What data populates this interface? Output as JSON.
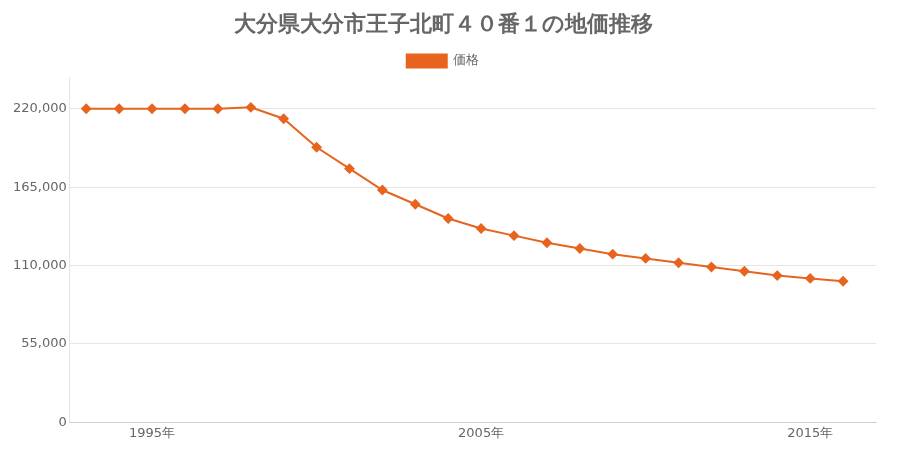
{
  "chart_data": {
    "type": "line",
    "title": "大分県大分市王子北町４０番１の地価推移",
    "x": [
      1993,
      1994,
      1995,
      1996,
      1997,
      1998,
      1999,
      2000,
      2001,
      2002,
      2003,
      2004,
      2005,
      2006,
      2007,
      2008,
      2009,
      2010,
      2011,
      2012,
      2013,
      2014,
      2015,
      2016
    ],
    "series": [
      {
        "name": "価格",
        "color": "#e8641e",
        "marker": "diamond",
        "line_style": "solid",
        "values": [
          220000,
          220000,
          220000,
          220000,
          220000,
          221000,
          213000,
          193000,
          178000,
          163000,
          153000,
          143000,
          136000,
          131000,
          126000,
          122000,
          118000,
          115000,
          112000,
          109000,
          106000,
          103000,
          101000,
          99000
        ]
      }
    ],
    "xlim": [
      1992.5,
      2017
    ],
    "xticks": [
      {
        "value": 1995,
        "label": "1995年"
      },
      {
        "value": 2005,
        "label": "2005年"
      },
      {
        "value": 2015,
        "label": "2015年"
      }
    ],
    "ylim": [
      0,
      242000
    ],
    "yticks": [
      0,
      {
        "value": 55000,
        "label": "55,000"
      },
      {
        "value": 110000,
        "label": "110,000"
      },
      {
        "value": 165000,
        "label": "165,000"
      },
      {
        "value": 220000,
        "label": "220,000"
      }
    ],
    "grid": "y",
    "legend": "top"
  }
}
